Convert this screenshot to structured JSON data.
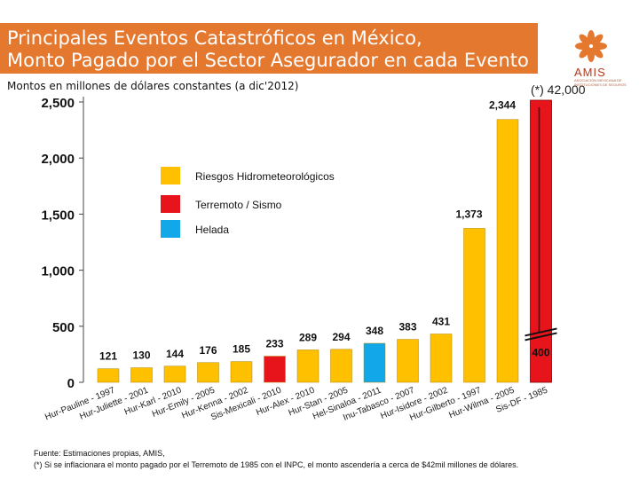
{
  "header": {
    "title_line1": "Principales Eventos Catastróficos en México,",
    "title_line2": "Monto Pagado por el Sector Asegurador en cada Evento",
    "subtitle": "Montos en millones de dólares constantes (a dic'2012)",
    "note_value": "(*) 42,000",
    "logo_text": "AMIS",
    "logo_subtext": "ASOCIACIÓN MEXICANA DE INSTITUCIONES DE SEGUROS"
  },
  "colors": {
    "title_bg": "#e4782f",
    "hydro": "#ffc000",
    "earthquake": "#e8141c",
    "frost": "#12a7e8",
    "logo": "#e4782f"
  },
  "chart_data": {
    "type": "bar",
    "title": "Principales Eventos Catastróficos en México, Monto Pagado por el Sector Asegurador en cada Evento",
    "ylabel": "Montos en millones de dólares constantes (a dic'2012)",
    "xlabel": "",
    "ylim": [
      0,
      2500
    ],
    "yticks": [
      0,
      500,
      1000,
      1500,
      2000,
      2500
    ],
    "ytick_labels": [
      "0",
      "500",
      "1,000",
      "1,500",
      "2,000",
      "2,500"
    ],
    "categories": [
      "Hur-Pauline - 1997",
      "Hur-Juliette - 2001",
      "Hur-Karl - 2010",
      "Hur-Emily - 2005",
      "Hur-Kenna - 2002",
      "Sis-Mexicali - 2010",
      "Hur-Alex - 2010",
      "Hur-Stan - 2005",
      "Hel-Sinaloa - 2011",
      "Inu-Tabasco - 2007",
      "Hur-Isidore - 2002",
      "Hur-Gilberto - 1997",
      "Hur-Wilma - 2005",
      "Sis-DF - 1985"
    ],
    "values": [
      121,
      130,
      144,
      176,
      185,
      233,
      289,
      294,
      348,
      383,
      431,
      1373,
      2344,
      400
    ],
    "value_labels": [
      "121",
      "130",
      "144",
      "176",
      "185",
      "233",
      "289",
      "294",
      "348",
      "383",
      "431",
      "1,373",
      "2,344",
      "400"
    ],
    "series_type": [
      "hydro",
      "hydro",
      "hydro",
      "hydro",
      "hydro",
      "earthquake",
      "hydro",
      "hydro",
      "frost",
      "hydro",
      "hydro",
      "hydro",
      "hydro",
      "earthquake"
    ],
    "legend": [
      {
        "key": "hydro",
        "label": "Riesgos Hidrometeorológicos"
      },
      {
        "key": "earthquake",
        "label": "Terremoto / Sismo"
      },
      {
        "key": "frost",
        "label": "Helada"
      }
    ],
    "broken_bar": {
      "category": "Sis-DF - 1985",
      "adjusted_value_label": "(*) 42,000"
    },
    "legend_position": "upper-middle",
    "grid": false
  },
  "footer": {
    "line1": "Fuente: Estimaciones propias, AMIS,",
    "line2": "(*) Si se inflacionara el monto pagado por el Terremoto de 1985 con el INPC, el monto ascendería a cerca de $42mil millones de dólares."
  }
}
